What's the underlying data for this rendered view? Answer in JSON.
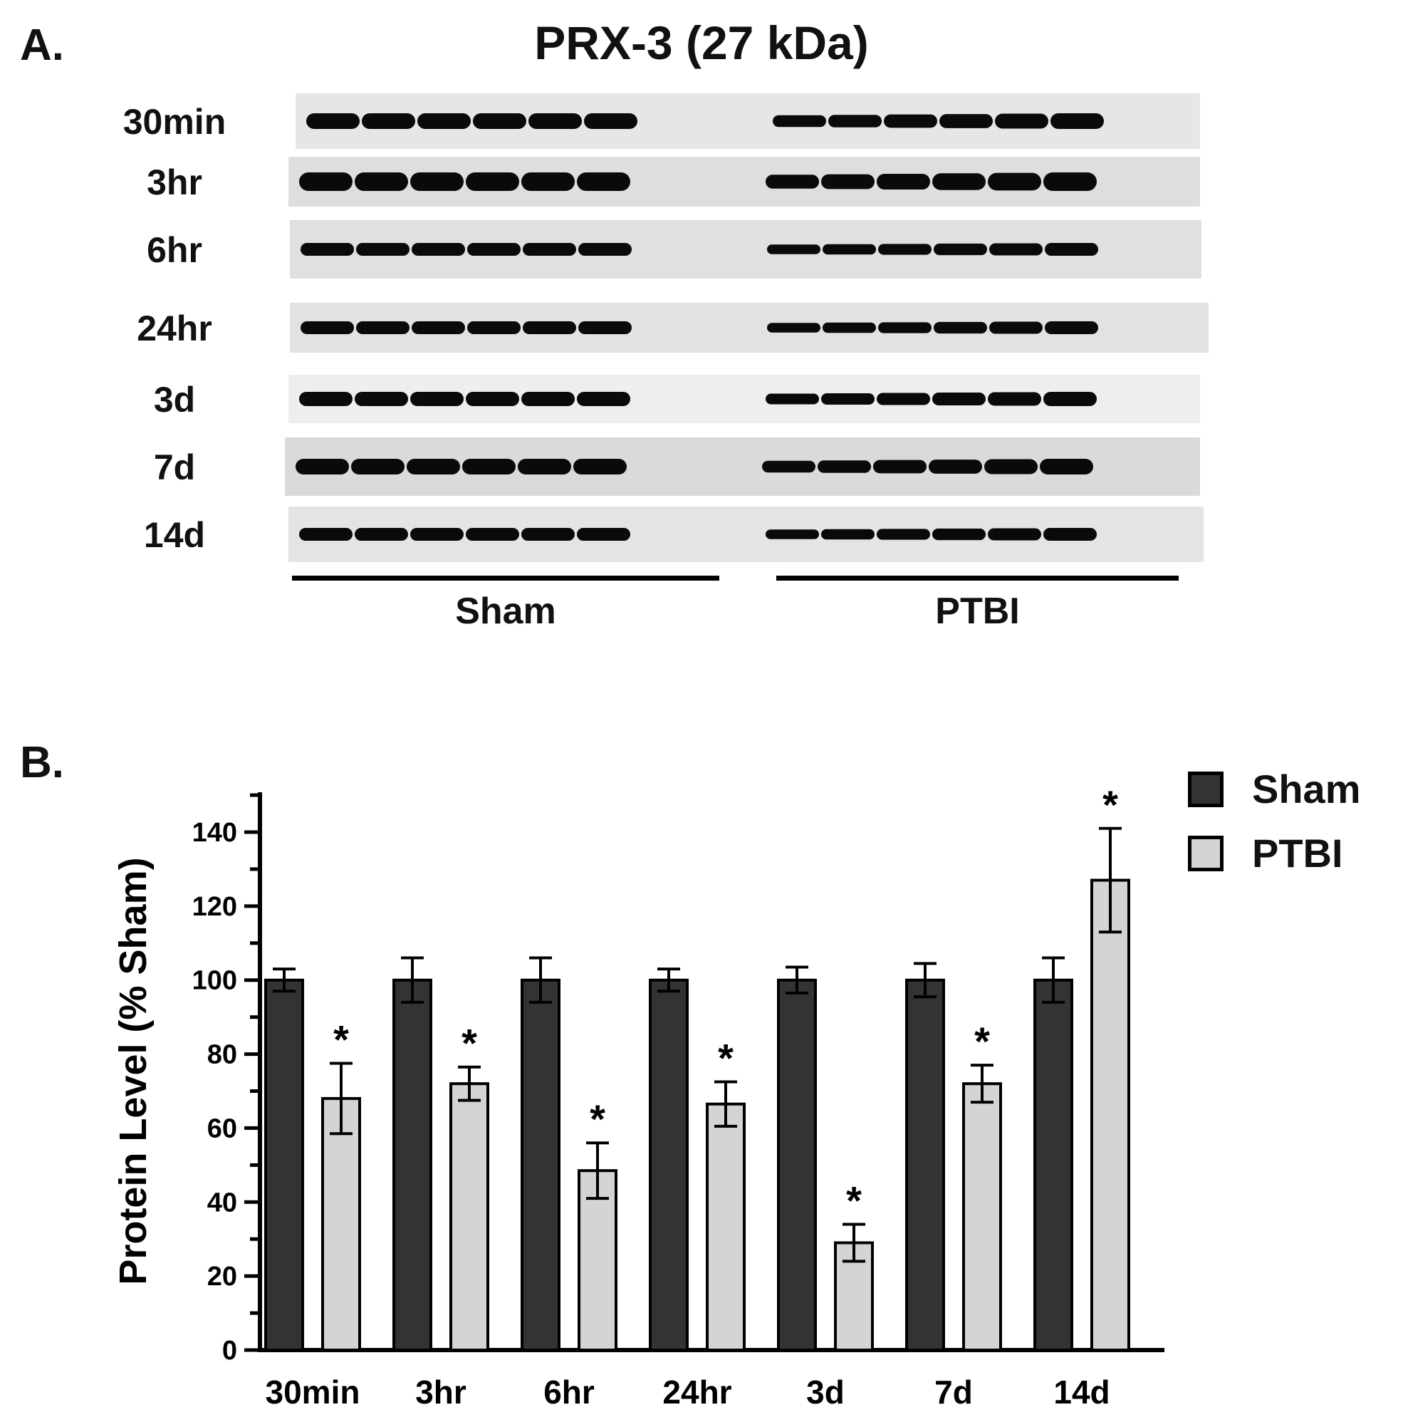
{
  "panel_a_label": "A.",
  "panel_b_label": "B.",
  "blot": {
    "title": "PRX-3 (27 kDa)",
    "rows": [
      "30min",
      "3hr",
      "6hr",
      "24hr",
      "3d",
      "7d",
      "14d"
    ],
    "groups": [
      "Sham",
      "PTBI"
    ]
  },
  "chart_data": {
    "type": "bar",
    "categories": [
      "30min",
      "3hr",
      "6hr",
      "24hr",
      "3d",
      "7d",
      "14d"
    ],
    "series": [
      {
        "name": "Sham",
        "values": [
          100,
          100,
          100,
          100,
          100,
          100,
          100
        ],
        "errors": [
          3,
          6,
          6,
          3,
          3.5,
          4.5,
          6
        ],
        "color": "#333333"
      },
      {
        "name": "PTBI",
        "values": [
          68,
          72,
          48.5,
          66.5,
          29,
          72,
          127
        ],
        "errors": [
          9.5,
          4.5,
          7.5,
          6,
          5,
          5,
          14
        ],
        "color": "#d4d4d4"
      }
    ],
    "significance": [
      "*",
      "*",
      "*",
      "*",
      "*",
      "*",
      "*"
    ],
    "ylabel": "Protein Level (% Sham)",
    "xlabel": "",
    "ylim": [
      0,
      150
    ],
    "yticks": [
      0,
      20,
      40,
      60,
      80,
      100,
      120,
      140
    ],
    "legend_position": "top-right"
  }
}
